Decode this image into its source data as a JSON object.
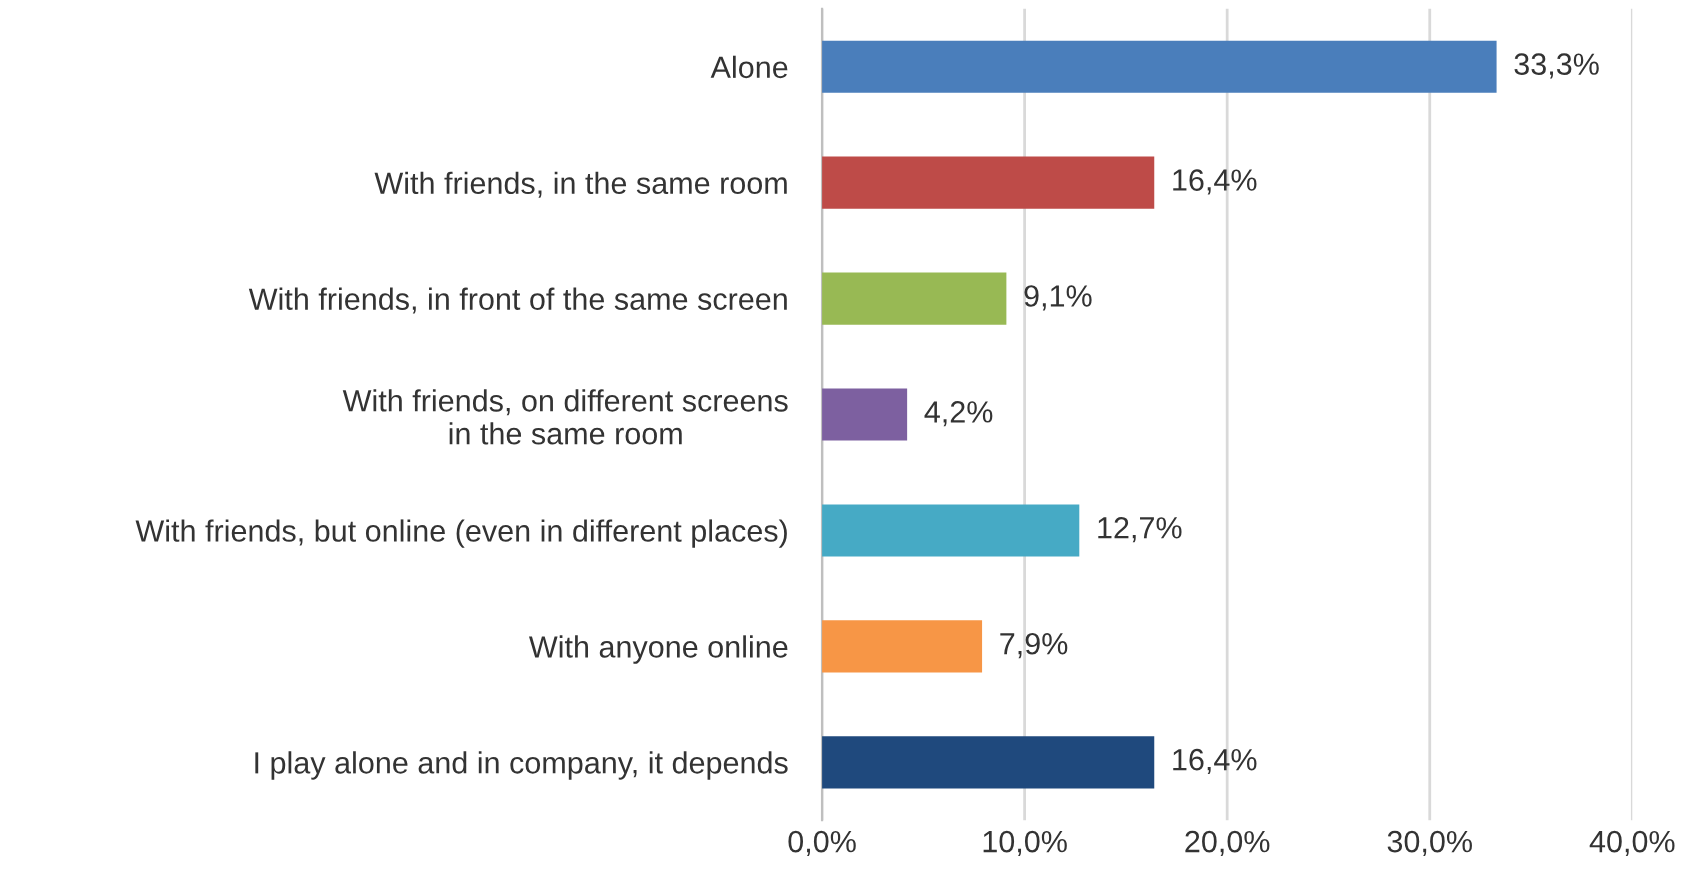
{
  "chart_data": {
    "type": "bar",
    "orientation": "horizontal",
    "categories": [
      "Alone",
      "With friends, in the same room",
      "With friends, in front of the same screen",
      "With friends, on different screens\nin the same room",
      "With friends, but online (even in different places)",
      "With anyone online",
      "I play alone and in company, it depends"
    ],
    "values": [
      33.3,
      16.4,
      9.1,
      4.2,
      12.7,
      7.9,
      16.4
    ],
    "value_labels": [
      "33,3%",
      "16,4%",
      "9,1%",
      "4,2%",
      "12,7%",
      "7,9%",
      "16,4%"
    ],
    "colors": [
      "#4a7ebb",
      "#be4b48",
      "#98b954",
      "#7d60a0",
      "#46aac5",
      "#f79646",
      "#1f497d"
    ],
    "xlim": [
      0,
      40
    ],
    "xticks": [
      {
        "value": 0,
        "label": "0,0%"
      },
      {
        "value": 10,
        "label": "10,0%"
      },
      {
        "value": 20,
        "label": "20,0%"
      },
      {
        "value": 30,
        "label": "30,0%"
      },
      {
        "value": 40,
        "label": "40,0%"
      }
    ],
    "grid": "x",
    "legend": false
  }
}
